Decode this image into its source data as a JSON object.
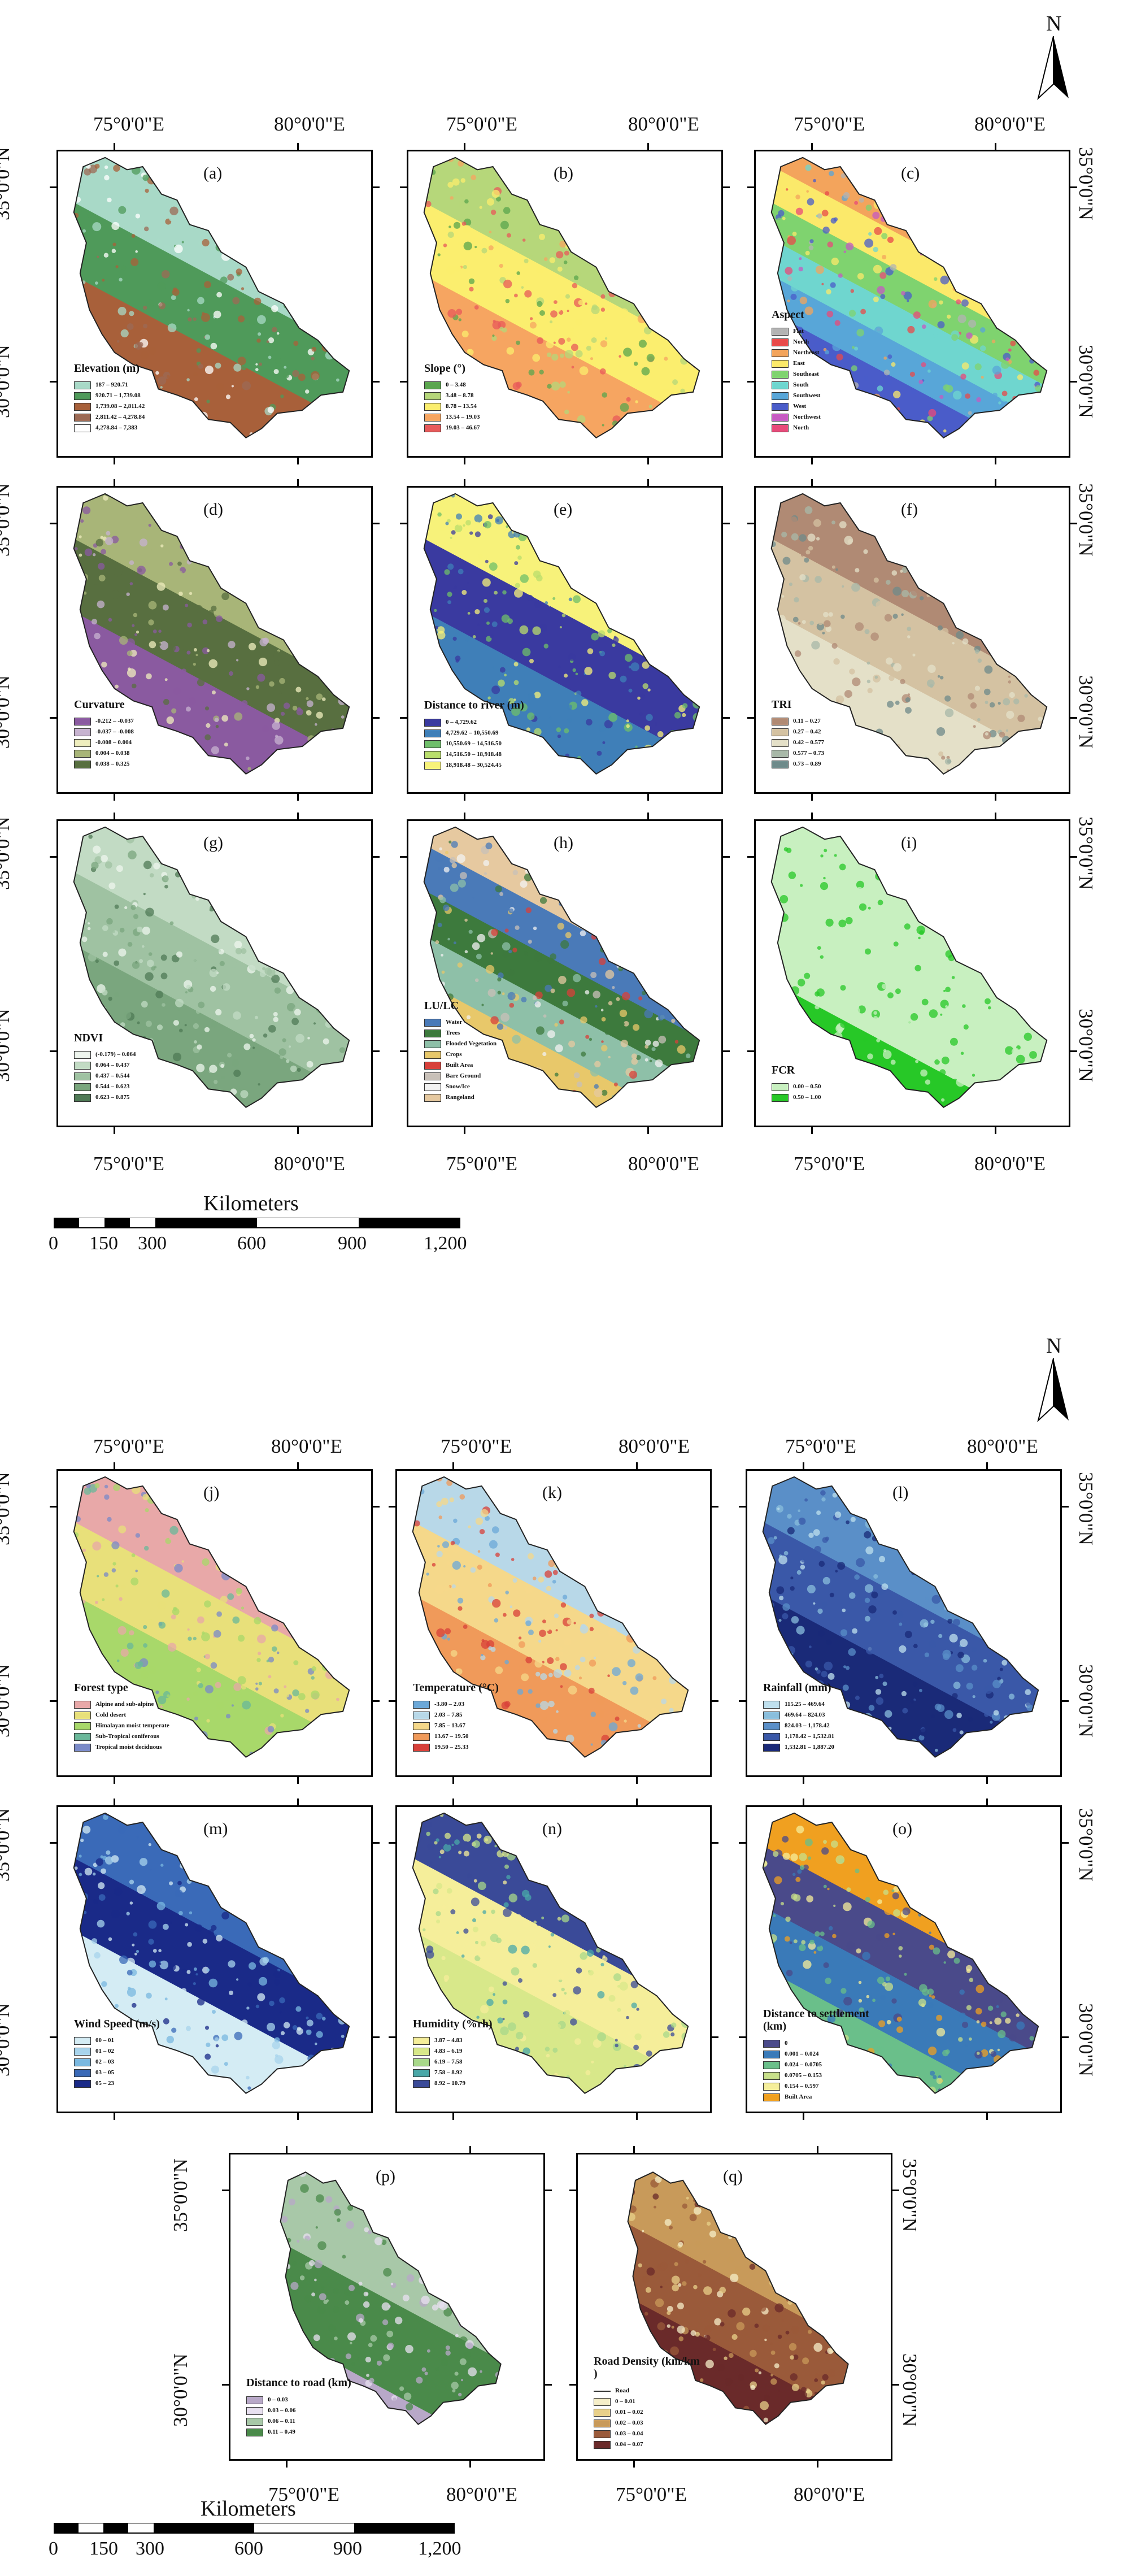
{
  "figure1": {
    "north_label": "N",
    "coords": {
      "lon_left": "75°0'0\"E",
      "lon_right": "80°0'0\"E",
      "lat_top": "35°0'0\"N",
      "lat_bottom": "30°0'0\"N"
    },
    "panels": [
      {
        "id": "a",
        "label": "(a)",
        "legend_title": "Elevation (m)",
        "items": [
          {
            "label": "187 – 920.71",
            "color": "#a8d9c7"
          },
          {
            "label": "920.71 – 1,739.08",
            "color": "#4f9a5a"
          },
          {
            "label": "1,739.08 – 2,811.42",
            "color": "#a8603a"
          },
          {
            "label": "2,811.42 – 4,278.84",
            "color": "#9c6a55"
          },
          {
            "label": "4,278.84 – 7,383",
            "color": "#ffffff"
          }
        ]
      },
      {
        "id": "b",
        "label": "(b)",
        "legend_title": "Slope (°)",
        "items": [
          {
            "label": "0 – 3.48",
            "color": "#5aa64e"
          },
          {
            "label": "3.48 – 8.78",
            "color": "#b6d77a"
          },
          {
            "label": "8.78 – 13.54",
            "color": "#fbee6e"
          },
          {
            "label": "13.54 – 19.03",
            "color": "#f6a561"
          },
          {
            "label": "19.03 – 46.67",
            "color": "#e85a5a"
          }
        ]
      },
      {
        "id": "c",
        "label": "(c)",
        "legend_title": "Aspect",
        "items": [
          {
            "label": "Flat",
            "color": "#b3b3b3"
          },
          {
            "label": "North",
            "color": "#e84a4a"
          },
          {
            "label": "Northeast",
            "color": "#f3a45c"
          },
          {
            "label": "East",
            "color": "#fbe96a"
          },
          {
            "label": "Southeast",
            "color": "#7fd36f"
          },
          {
            "label": "South",
            "color": "#6fd6cf"
          },
          {
            "label": "Southwest",
            "color": "#58a6d8"
          },
          {
            "label": "West",
            "color": "#4a5cc9"
          },
          {
            "label": "Northwest",
            "color": "#c65ac2"
          },
          {
            "label": "North",
            "color": "#e84a7a"
          }
        ]
      },
      {
        "id": "d",
        "label": "(d)",
        "legend_title": "Curvature",
        "items": [
          {
            "label": "-0.212 – -0.037",
            "color": "#8a5aa0"
          },
          {
            "label": "-0.037 – -0.008",
            "color": "#c7b3d0"
          },
          {
            "label": "-0.008 – 0.004",
            "color": "#efeebe"
          },
          {
            "label": "0.004 – 0.038",
            "color": "#a8b578"
          },
          {
            "label": "0.038 – 0.325",
            "color": "#586f40"
          }
        ]
      },
      {
        "id": "e",
        "label": "(e)",
        "legend_title": "Distance to river (m)",
        "items": [
          {
            "label": "0 – 4,729.62",
            "color": "#3a3aa0"
          },
          {
            "label": "4,729.62 – 10,550.69",
            "color": "#3f7fb8"
          },
          {
            "label": "10,550.69 – 14,516.50",
            "color": "#6fbf6a"
          },
          {
            "label": "14,516.50 – 18,918.48",
            "color": "#b9de6c"
          },
          {
            "label": "18,918.48 – 30,524.45",
            "color": "#f7f27a"
          }
        ]
      },
      {
        "id": "f",
        "label": "(f)",
        "legend_title": "TRI",
        "items": [
          {
            "label": "0.11 – 0.27",
            "color": "#b08a74"
          },
          {
            "label": "0.27 – 0.42",
            "color": "#d4c2a2"
          },
          {
            "label": "0.42 – 0.577",
            "color": "#e4e0c8"
          },
          {
            "label": "0.577 – 0.73",
            "color": "#a8b8a8"
          },
          {
            "label": "0.73 – 0.89",
            "color": "#6f8a8a"
          }
        ]
      },
      {
        "id": "g",
        "label": "(g)",
        "legend_title": "NDVI",
        "items": [
          {
            "label": "(-0.179) – 0.064",
            "color": "#eef5ee"
          },
          {
            "label": "0.064 – 0.437",
            "color": "#c2dbc4"
          },
          {
            "label": "0.437 – 0.544",
            "color": "#9fc2a2"
          },
          {
            "label": "0.544 – 0.623",
            "color": "#7aa67e"
          },
          {
            "label": "0.623 – 0.875",
            "color": "#4f7a56"
          }
        ]
      },
      {
        "id": "h",
        "label": "(h)",
        "legend_title": "LU/LC",
        "items": [
          {
            "label": "Water",
            "color": "#4a7ab8"
          },
          {
            "label": "Trees",
            "color": "#3d7a3d"
          },
          {
            "label": "Flooded Vegetation",
            "color": "#8ec0a8"
          },
          {
            "label": "Crops",
            "color": "#e8c86a"
          },
          {
            "label": "Built Area",
            "color": "#d8403a"
          },
          {
            "label": "Bare Ground",
            "color": "#c8c0b8"
          },
          {
            "label": "Snow/Ice",
            "color": "#f2f2f2"
          },
          {
            "label": "Rangeland",
            "color": "#e6c9a0"
          }
        ]
      },
      {
        "id": "i",
        "label": "(i)",
        "legend_title": "FCR",
        "items": [
          {
            "label": "0.00 – 0.50",
            "color": "#c8f0c0"
          },
          {
            "label": "0.50 – 1.00",
            "color": "#27c827"
          }
        ]
      }
    ],
    "scale": {
      "title": "Kilometers",
      "ticks": [
        "0",
        "150",
        "300",
        "600",
        "900",
        "1,200"
      ]
    }
  },
  "figure2": {
    "north_label": "N",
    "coords": {
      "lon_left": "75°0'0\"E",
      "lon_right": "80°0'0\"E",
      "lat_top": "35°0'0\"N",
      "lat_bottom": "30°0'0\"N"
    },
    "panels": [
      {
        "id": "j",
        "label": "(j)",
        "legend_title": "Forest type",
        "items": [
          {
            "label": "Alpine and sub-alpine",
            "color": "#e8a8a8"
          },
          {
            "label": "Cold desert",
            "color": "#e8e07a"
          },
          {
            "label": "Himalayan moist temperate",
            "color": "#a8d86a"
          },
          {
            "label": "Sub-Tropical coniferous",
            "color": "#6ab89a"
          },
          {
            "label": "Tropical moist deciduous",
            "color": "#7a8ac8"
          }
        ]
      },
      {
        "id": "k",
        "label": "(k)",
        "legend_title": "Temperature (°C)",
        "items": [
          {
            "label": "-3.80 – 2.03",
            "color": "#6ba8d8"
          },
          {
            "label": "2.03 – 7.85",
            "color": "#b8d8e8"
          },
          {
            "label": "7.85 – 13.67",
            "color": "#f5d88a"
          },
          {
            "label": "13.67 – 19.50",
            "color": "#f09a5a"
          },
          {
            "label": "19.50 – 25.33",
            "color": "#d8403a"
          }
        ]
      },
      {
        "id": "l",
        "label": "(l)",
        "legend_title": "Rainfall (mm)",
        "items": [
          {
            "label": "115.25 – 469.64",
            "color": "#bfe0ee"
          },
          {
            "label": "469.64 – 824.03",
            "color": "#8abedc"
          },
          {
            "label": "824.03 – 1,178.42",
            "color": "#5a8fc8"
          },
          {
            "label": "1,178.42 – 1,532.81",
            "color": "#3a58a8"
          },
          {
            "label": "1,532.81 – 1,887.20",
            "color": "#1a2a78"
          }
        ]
      },
      {
        "id": "m",
        "label": "(m)",
        "legend_title": "Wind Speed (m/s)",
        "items": [
          {
            "label": "00 – 01",
            "color": "#d4ecf4"
          },
          {
            "label": "01 – 02",
            "color": "#a8d4ec"
          },
          {
            "label": "02 – 03",
            "color": "#7ab8e0"
          },
          {
            "label": "03 – 05",
            "color": "#3a6ab8"
          },
          {
            "label": "05 – 23",
            "color": "#1a2a88"
          }
        ]
      },
      {
        "id": "n",
        "label": "(n)",
        "legend_title": "Humidity (%rh)",
        "items": [
          {
            "label": "3.87 – 4.83",
            "color": "#f5ee9a"
          },
          {
            "label": "4.83 – 6.19",
            "color": "#d8e88a"
          },
          {
            "label": "6.19 – 7.58",
            "color": "#a8d88a"
          },
          {
            "label": "7.58 – 8.92",
            "color": "#4aa8a8"
          },
          {
            "label": "8.92 – 10.79",
            "color": "#3a4a98"
          }
        ]
      },
      {
        "id": "o",
        "label": "(o)",
        "legend_title": "Distance to settlement (km)",
        "items": [
          {
            "label": "0",
            "color": "#4a4a8a"
          },
          {
            "label": "0.001 – 0.024",
            "color": "#3a7ab8"
          },
          {
            "label": "0.024 – 0.0705",
            "color": "#6abf8a"
          },
          {
            "label": "0.0705 – 0.153",
            "color": "#c8e08a"
          },
          {
            "label": "0.154 – 0.597",
            "color": "#f5ee9a"
          },
          {
            "label": "Built Area",
            "color": "#f0a020"
          }
        ]
      },
      {
        "id": "p",
        "label": "(p)",
        "legend_title": "Distance to road (km)",
        "items": [
          {
            "label": "0 – 0.03",
            "color": "#b8a8c8"
          },
          {
            "label": "0.03 – 0.06",
            "color": "#e8e0f0"
          },
          {
            "label": "0.06 – 0.11",
            "color": "#a8c8a8"
          },
          {
            "label": "0.11 – 0.49",
            "color": "#4a8a4a"
          }
        ]
      },
      {
        "id": "q",
        "label": "(q)",
        "legend_title": "Road Density (km/km )",
        "road_label": "Road",
        "items": [
          {
            "label": "0 – 0.01",
            "color": "#f5eec8"
          },
          {
            "label": "0.01 – 0.02",
            "color": "#e8d08a"
          },
          {
            "label": "0.02 – 0.03",
            "color": "#c89a5a"
          },
          {
            "label": "0.03 – 0.04",
            "color": "#9a5a3a"
          },
          {
            "label": "0.04 – 0.07",
            "color": "#6a2a2a"
          }
        ]
      }
    ],
    "scale": {
      "title": "Kilometers",
      "ticks": [
        "0",
        "150",
        "300",
        "600",
        "900",
        "1,200"
      ]
    }
  }
}
